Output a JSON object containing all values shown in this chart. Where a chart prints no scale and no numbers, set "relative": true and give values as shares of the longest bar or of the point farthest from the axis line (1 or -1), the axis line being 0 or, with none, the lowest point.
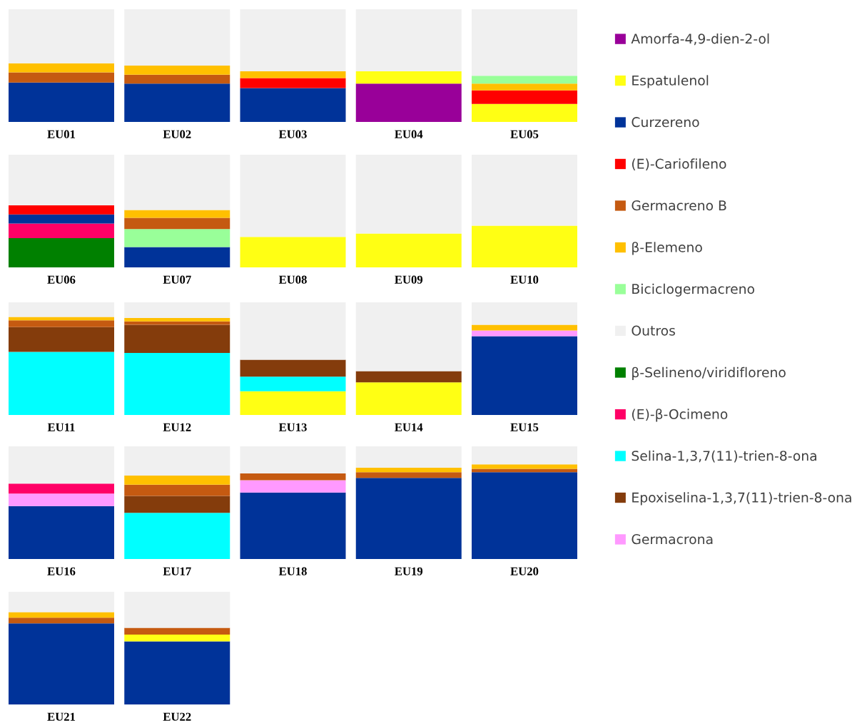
{
  "chart_data": [
    {
      "type": "bar",
      "stacked": true,
      "relative": true,
      "legend": "right",
      "categories": [
        "EU01",
        "EU02",
        "EU03",
        "EU04",
        "EU05"
      ],
      "series": [
        {
          "name": "Amorfa-4,9-dien-2-ol",
          "color": "#990099",
          "values": [
            null,
            null,
            null,
            0.34,
            null
          ]
        },
        {
          "name": "Espatulenol",
          "color": "#ffff14",
          "values": [
            null,
            null,
            null,
            0.11,
            0.16
          ]
        },
        {
          "name": "Curzereno",
          "color": "#003399",
          "values": [
            0.35,
            0.34,
            0.3,
            null,
            null
          ]
        },
        {
          "name": "(E)-Cariofileno",
          "color": "#ff0000",
          "values": [
            null,
            null,
            0.09,
            null,
            0.12
          ]
        },
        {
          "name": "Germacreno B",
          "color": "#c55a11",
          "values": [
            0.09,
            0.08,
            null,
            null,
            null
          ]
        },
        {
          "name": "β-Elemeno",
          "color": "#ffc000",
          "values": [
            0.08,
            0.08,
            0.06,
            null,
            0.06
          ]
        },
        {
          "name": "Biciclogermacreno",
          "color": "#99ff99",
          "values": [
            null,
            null,
            null,
            null,
            0.07
          ]
        },
        {
          "name": "Outros",
          "color": "#f0f0f0",
          "values": [
            0.48,
            0.5,
            0.55,
            0.55,
            0.59
          ]
        }
      ]
    },
    {
      "type": "bar",
      "stacked": true,
      "relative": true,
      "legend": "right",
      "categories": [
        "EU06",
        "EU07",
        "EU08",
        "EU09",
        "EU10"
      ],
      "series": [
        {
          "name": "β-Selineno/viridifloreno",
          "color": "#008000",
          "values": [
            0.26,
            null,
            null,
            null,
            null
          ]
        },
        {
          "name": "(E)-β-Ocimeno",
          "color": "#ff0066",
          "values": [
            0.13,
            null,
            null,
            null,
            null
          ]
        },
        {
          "name": "Curzereno",
          "color": "#003399",
          "values": [
            0.08,
            0.18,
            null,
            null,
            null
          ]
        },
        {
          "name": "(E)-Cariofileno",
          "color": "#ff0000",
          "values": [
            0.08,
            null,
            null,
            null,
            null
          ]
        },
        {
          "name": "Biciclogermacreno",
          "color": "#99ff99",
          "values": [
            null,
            0.16,
            null,
            null,
            null
          ]
        },
        {
          "name": "Germacreno B",
          "color": "#c55a11",
          "values": [
            null,
            0.1,
            null,
            null,
            null
          ]
        },
        {
          "name": "β-Elemeno",
          "color": "#ffc000",
          "values": [
            null,
            0.07,
            null,
            null,
            null
          ]
        },
        {
          "name": "Espatulenol",
          "color": "#ffff14",
          "values": [
            null,
            null,
            0.27,
            0.3,
            0.37
          ]
        },
        {
          "name": "Outros",
          "color": "#f0f0f0",
          "values": [
            0.45,
            0.49,
            0.73,
            0.7,
            0.63
          ]
        }
      ]
    },
    {
      "type": "bar",
      "stacked": true,
      "relative": true,
      "legend": "right",
      "categories": [
        "EU11",
        "EU12",
        "EU13",
        "EU14",
        "EU15"
      ],
      "series": [
        {
          "name": "Espatulenol",
          "color": "#ffff14",
          "values": [
            null,
            null,
            0.21,
            0.29,
            null
          ]
        },
        {
          "name": "Selina-1,3,7(11)-trien-8-ona",
          "color": "#00ffff",
          "values": [
            0.56,
            0.55,
            0.13,
            null,
            null
          ]
        },
        {
          "name": "Epoxiselina-1,3,7(11)-trien-8-ona",
          "color": "#843c0c",
          "values": [
            0.22,
            0.25,
            0.15,
            0.1,
            null
          ]
        },
        {
          "name": "Curzereno",
          "color": "#003399",
          "values": [
            null,
            null,
            null,
            null,
            0.7
          ]
        },
        {
          "name": "Germacrona",
          "color": "#ff99ff",
          "values": [
            null,
            null,
            null,
            null,
            0.05
          ]
        },
        {
          "name": "Germacreno B",
          "color": "#c55a11",
          "values": [
            0.06,
            0.03,
            null,
            null,
            null
          ]
        },
        {
          "name": "β-Elemeno",
          "color": "#ffc000",
          "values": [
            0.03,
            0.03,
            null,
            null,
            0.05
          ]
        },
        {
          "name": "Outros",
          "color": "#f0f0f0",
          "values": [
            0.13,
            0.14,
            0.51,
            0.61,
            0.2
          ]
        }
      ]
    },
    {
      "type": "bar",
      "stacked": true,
      "relative": true,
      "legend": "right",
      "categories": [
        "EU16",
        "EU17",
        "EU18",
        "EU19",
        "EU20"
      ],
      "series": [
        {
          "name": "Curzereno",
          "color": "#003399",
          "values": [
            0.47,
            null,
            0.59,
            0.72,
            0.77
          ]
        },
        {
          "name": "Selina-1,3,7(11)-trien-8-ona",
          "color": "#00ffff",
          "values": [
            null,
            0.41,
            null,
            null,
            null
          ]
        },
        {
          "name": "Epoxiselina-1,3,7(11)-trien-8-ona",
          "color": "#843c0c",
          "values": [
            null,
            0.15,
            null,
            null,
            null
          ]
        },
        {
          "name": "Germacrona",
          "color": "#ff99ff",
          "values": [
            0.11,
            null,
            0.11,
            null,
            null
          ]
        },
        {
          "name": "(E)-β-Ocimeno",
          "color": "#ff0066",
          "values": [
            0.09,
            null,
            null,
            null,
            null
          ]
        },
        {
          "name": "Germacreno B",
          "color": "#c55a11",
          "values": [
            null,
            0.1,
            0.06,
            0.05,
            0.03
          ]
        },
        {
          "name": "β-Elemeno",
          "color": "#ffc000",
          "values": [
            null,
            0.08,
            null,
            0.04,
            0.04
          ]
        },
        {
          "name": "Outros",
          "color": "#f0f0f0",
          "values": [
            0.33,
            0.26,
            0.24,
            0.19,
            0.16
          ]
        }
      ]
    },
    {
      "type": "bar",
      "stacked": true,
      "relative": true,
      "legend": "right",
      "categories": [
        "EU21",
        "EU22"
      ],
      "series": [
        {
          "name": "Curzereno",
          "color": "#003399",
          "values": [
            0.72,
            0.56
          ]
        },
        {
          "name": "Espatulenol",
          "color": "#ffff14",
          "values": [
            null,
            0.06
          ]
        },
        {
          "name": "Germacreno B",
          "color": "#c55a11",
          "values": [
            0.05,
            0.06
          ]
        },
        {
          "name": "β-Elemeno",
          "color": "#ffc000",
          "values": [
            0.05,
            null
          ]
        },
        {
          "name": "Outros",
          "color": "#f0f0f0",
          "values": [
            0.18,
            0.32
          ]
        }
      ]
    }
  ]
}
